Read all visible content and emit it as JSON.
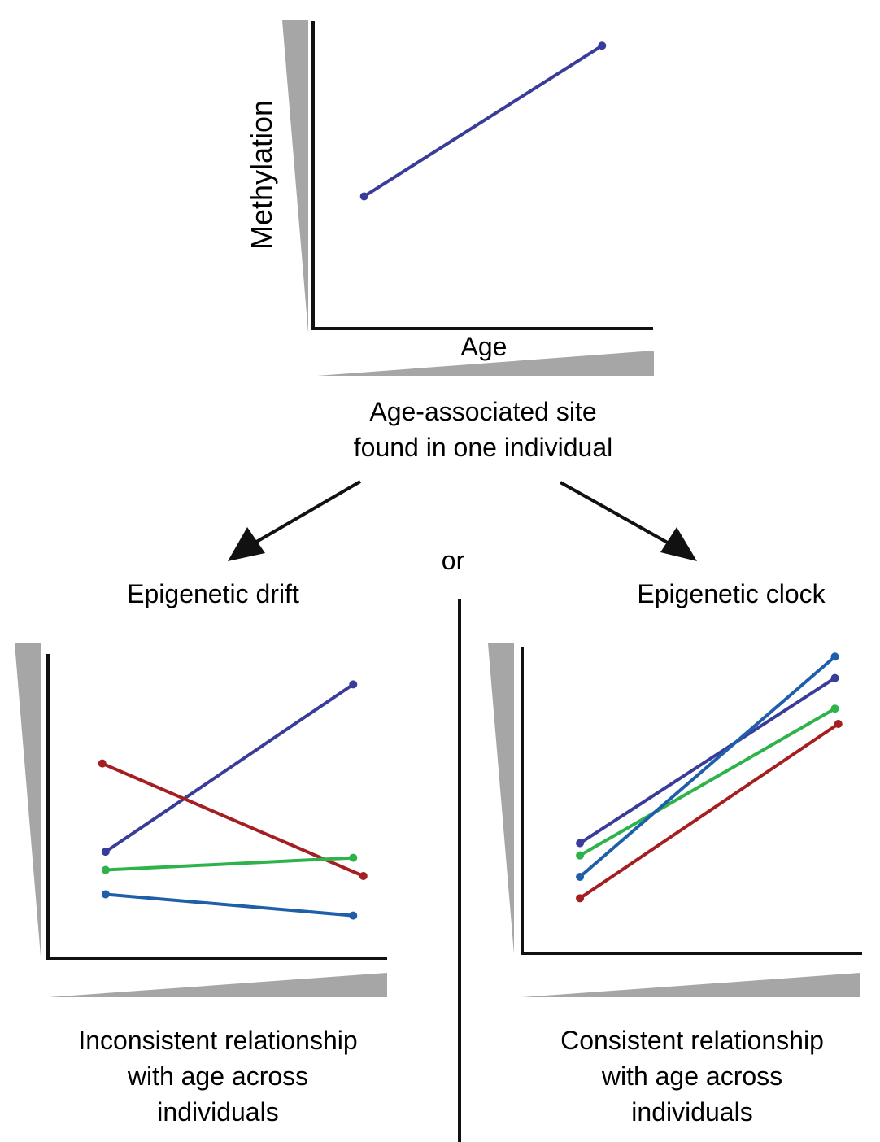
{
  "top": {
    "ylabel": "Methylation",
    "xlabel": "Age",
    "caption": [
      "Age-associated site",
      "found in one individual"
    ]
  },
  "connector": {
    "or_label": "or"
  },
  "drift": {
    "title": "Epigenetic drift",
    "caption": [
      "Inconsistent relationship",
      "with age across",
      "individuals"
    ]
  },
  "clock": {
    "title": "Epigenetic clock",
    "caption": [
      "Consistent relationship",
      "with age across",
      "individuals"
    ]
  },
  "colors": {
    "purple": "#3a3c9a",
    "red": "#a51e22",
    "green": "#2db34a",
    "blue": "#1f5faa",
    "wedge": "#a6a6a6",
    "axis": "#111111"
  },
  "chart_data": [
    {
      "type": "line",
      "panel": "top",
      "series": [
        {
          "color": "purple",
          "x": [
            0.15,
            0.85
          ],
          "y": [
            0.43,
            0.92
          ]
        }
      ]
    },
    {
      "type": "line",
      "panel": "drift",
      "series": [
        {
          "color": "purple",
          "x": [
            0.17,
            0.9
          ],
          "y": [
            0.35,
            0.9
          ]
        },
        {
          "color": "red",
          "x": [
            0.16,
            0.93
          ],
          "y": [
            0.64,
            0.27
          ]
        },
        {
          "color": "green",
          "x": [
            0.17,
            0.9
          ],
          "y": [
            0.29,
            0.33
          ]
        },
        {
          "color": "blue",
          "x": [
            0.17,
            0.9
          ],
          "y": [
            0.21,
            0.14
          ]
        }
      ]
    },
    {
      "type": "line",
      "panel": "clock",
      "series": [
        {
          "color": "purple",
          "x": [
            0.17,
            0.92
          ],
          "y": [
            0.36,
            0.9
          ]
        },
        {
          "color": "green",
          "x": [
            0.17,
            0.92
          ],
          "y": [
            0.32,
            0.8
          ]
        },
        {
          "color": "blue",
          "x": [
            0.17,
            0.92
          ],
          "y": [
            0.25,
            0.97
          ]
        },
        {
          "color": "red",
          "x": [
            0.17,
            0.93
          ],
          "y": [
            0.18,
            0.75
          ]
        }
      ]
    }
  ]
}
